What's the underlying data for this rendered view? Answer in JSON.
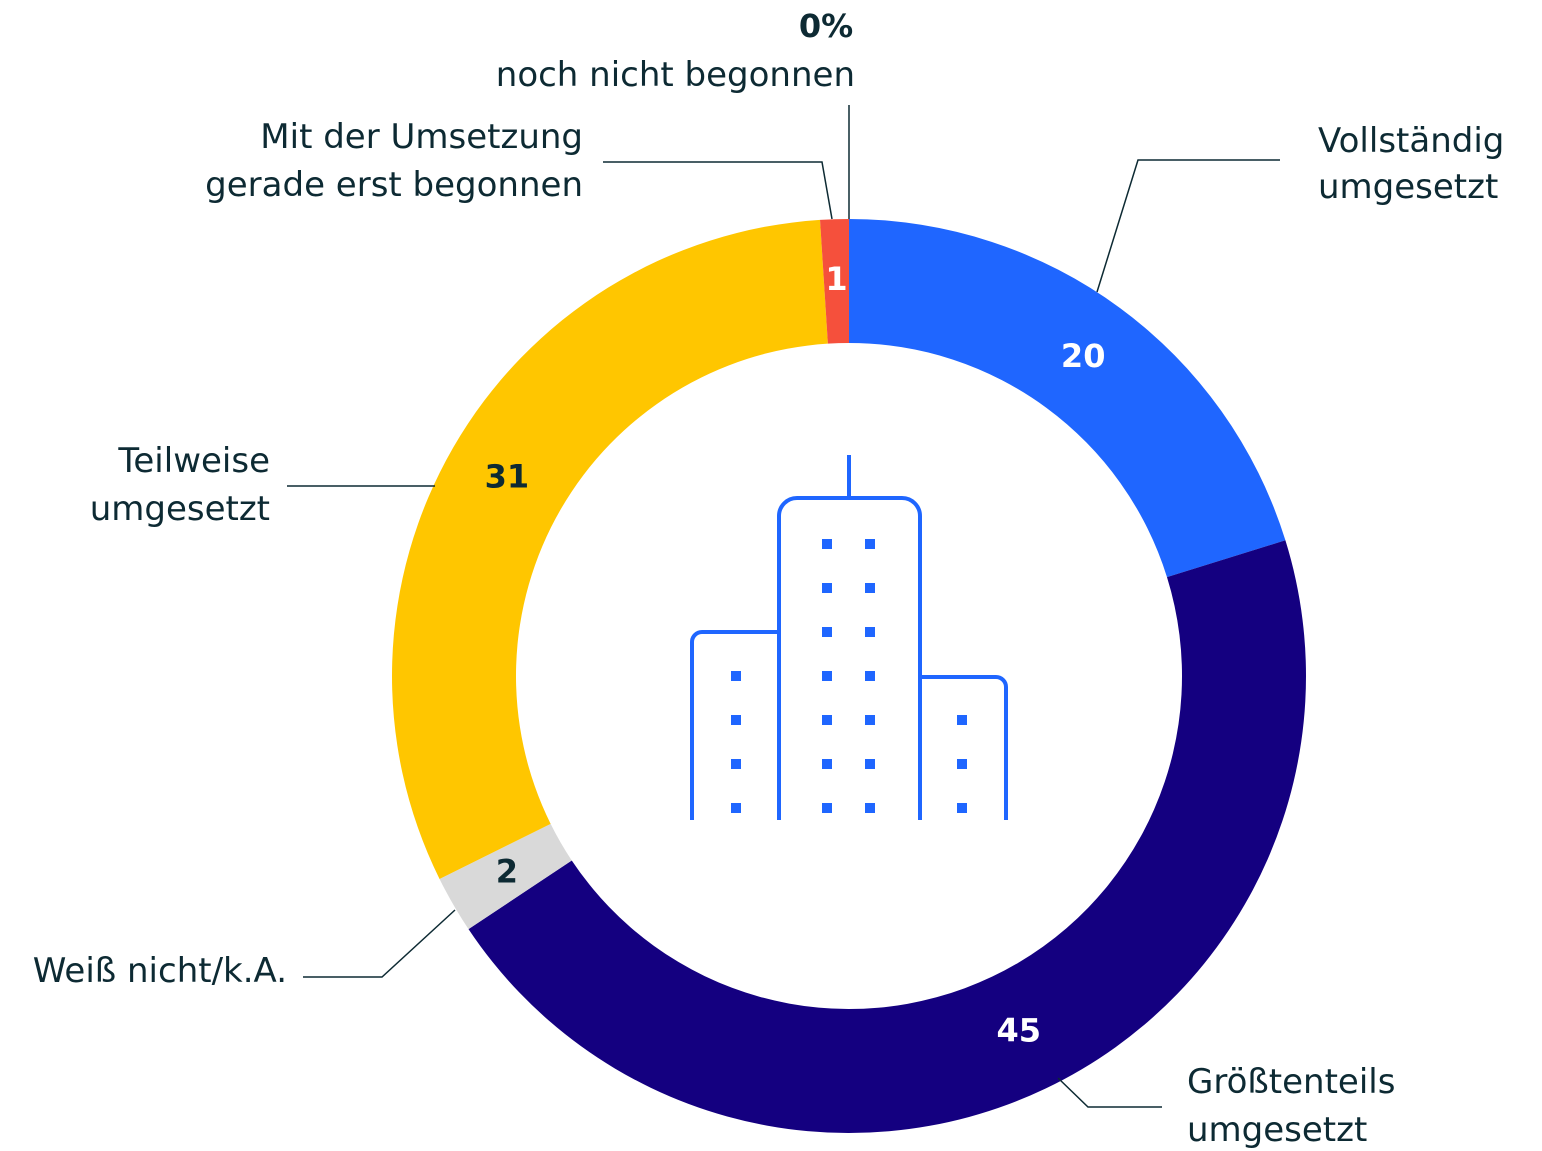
{
  "chart_data": {
    "type": "donut",
    "categories": [
      "Vollständig\numgesetzt",
      "Größtenteils\numgesetzt",
      "Weiß nicht/k.A.",
      "Teilweise\numgesetzt",
      "Mit der Umsetzung\ngerade erst begonnen",
      "noch nicht begonnen"
    ],
    "values": [
      20,
      45,
      2,
      31,
      1,
      0
    ],
    "value_labels": [
      "20",
      "45",
      "2",
      "31",
      "1",
      "0%"
    ],
    "colors": [
      "#1f66ff",
      "#140080",
      "#d9d9d9",
      "#ffc600",
      "#f5503c",
      "#9a9a9a"
    ]
  }
}
